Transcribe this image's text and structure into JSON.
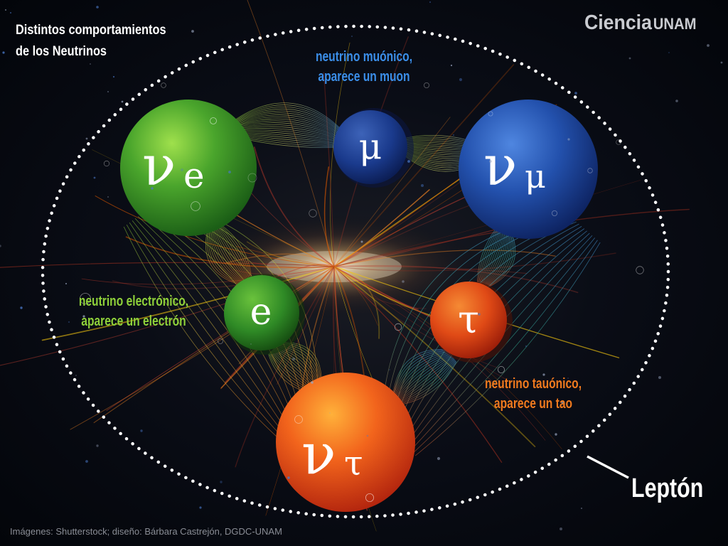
{
  "title": {
    "line1": "Distintos comportamientos",
    "line2": "de los Neutrinos"
  },
  "logo": {
    "part1": "Ciencia",
    "part2": "UNAM"
  },
  "labels": {
    "muon": [
      "neutrino muónico,",
      "aparece un muon"
    ],
    "electron": [
      "neutrino electrónico,",
      "aparece un electrón"
    ],
    "tau": [
      "neutrino tauónico,",
      "aparece un tao"
    ]
  },
  "particles": {
    "nu_e": {
      "base": "ν",
      "sub": "e"
    },
    "nu_mu": {
      "base": "ν",
      "sub": "μ"
    },
    "nu_tau": {
      "base": "ν",
      "sub": "τ"
    },
    "mu": "μ",
    "e": "e",
    "tau": "τ"
  },
  "boundary_label": "Leptón",
  "credits": "Imágenes: Shutterstock; diseño: Bárbara Castrejón, DGDC-UNAM",
  "colors": {
    "green": "#3f9e2a",
    "blue": "#1f4fa8",
    "orange": "#e8561a",
    "label_blue": "#3b8ee8",
    "label_green": "#8fd13a",
    "label_orange": "#f07a1e"
  }
}
